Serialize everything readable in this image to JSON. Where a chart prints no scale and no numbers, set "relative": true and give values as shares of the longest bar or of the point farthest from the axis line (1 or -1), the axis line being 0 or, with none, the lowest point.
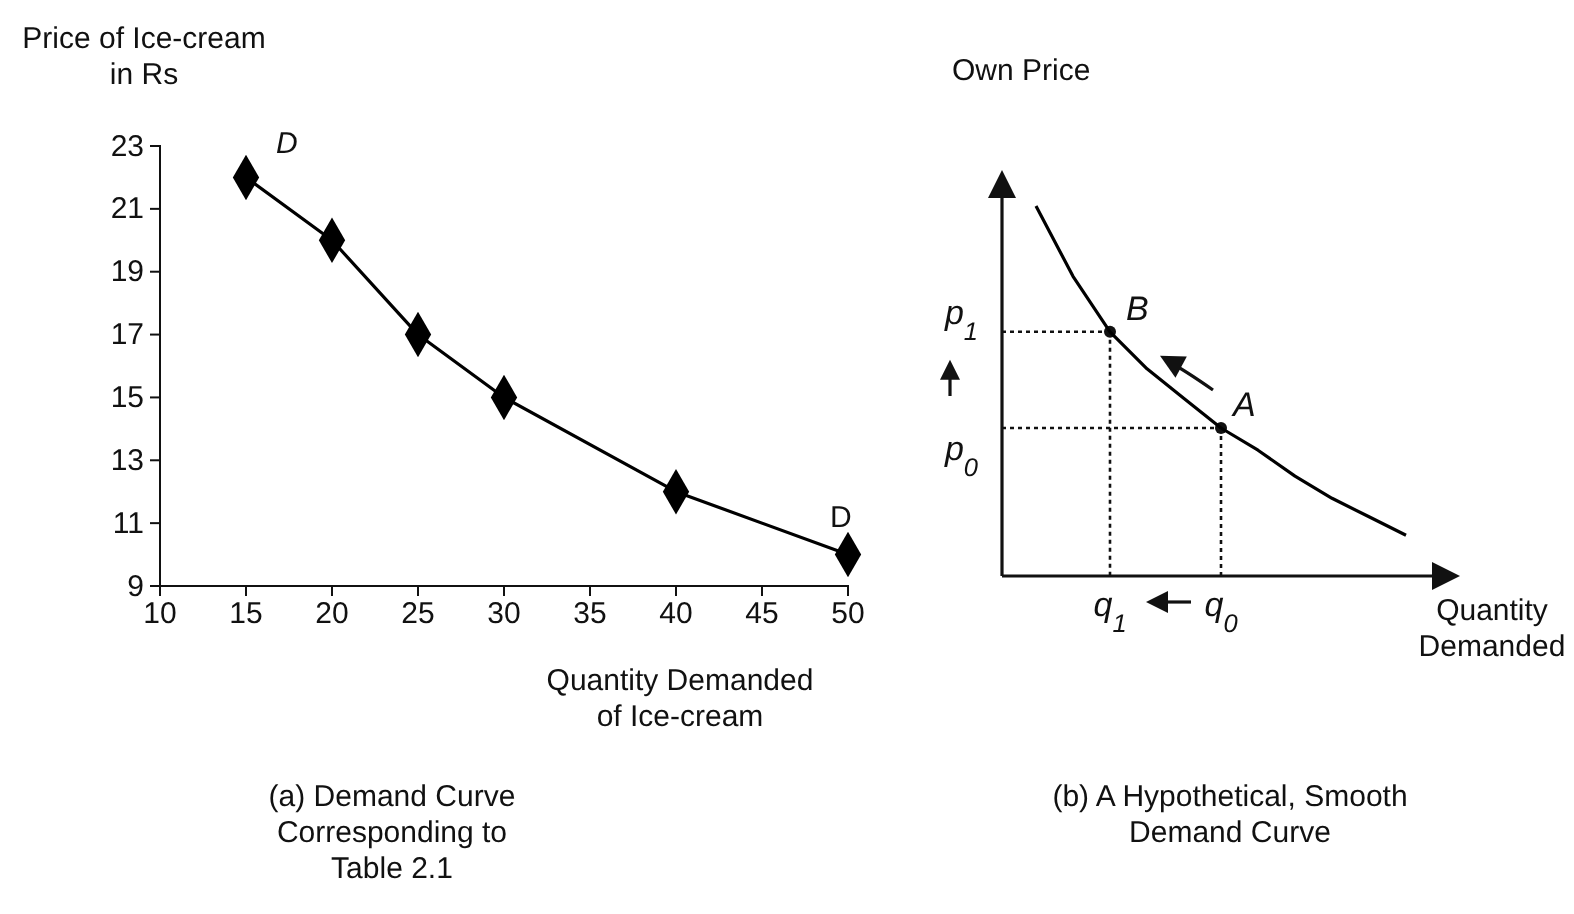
{
  "chart_data": [
    {
      "type": "line",
      "title": "(a) Demand Curve Corresponding to Table 2.1",
      "xlabel": "Quantity Demanded of Ice-cream",
      "ylabel": "Price of Ice-cream in Rs",
      "x": [
        15,
        20,
        25,
        30,
        40,
        50
      ],
      "values": [
        22,
        20,
        17,
        15,
        12,
        10
      ],
      "color": "#000000",
      "marker": "diamond",
      "xlim": [
        10,
        50
      ],
      "xticks": [
        10,
        15,
        20,
        25,
        30,
        35,
        40,
        45,
        50
      ],
      "ylim": [
        9,
        23
      ],
      "yticks": [
        9,
        11,
        13,
        15,
        17,
        19,
        21,
        23
      ],
      "annotations": [
        {
          "text": "D",
          "x": 15,
          "y": 22
        },
        {
          "text": "D",
          "x": 50,
          "y": 10
        }
      ]
    },
    {
      "type": "line",
      "relative": true,
      "title": "(b) A Hypothetical, Smooth Demand Curve",
      "xlabel": "Quantity Demanded",
      "ylabel": "Own Price",
      "categories": [
        null,
        null,
        null,
        null,
        null,
        null,
        null,
        null,
        null,
        null,
        null
      ],
      "series": [
        {
          "color": "#000000",
          "values": [
            1,
            0.81,
            0.66,
            0.56,
            0.48,
            0.4,
            0.34,
            0.27,
            0.21,
            0.16,
            0.11
          ]
        }
      ],
      "ref_lines": [
        {
          "axis": "y",
          "value": 0.66,
          "label": "p$_{1}$",
          "line_style": "dotted"
        },
        {
          "axis": "y",
          "value": 0.4,
          "label": "p$_{0}$",
          "line_style": "dotted"
        }
      ],
      "annotations": [
        "B",
        "A",
        "q$_{1}$",
        "q$_{0}$"
      ]
    }
  ]
}
